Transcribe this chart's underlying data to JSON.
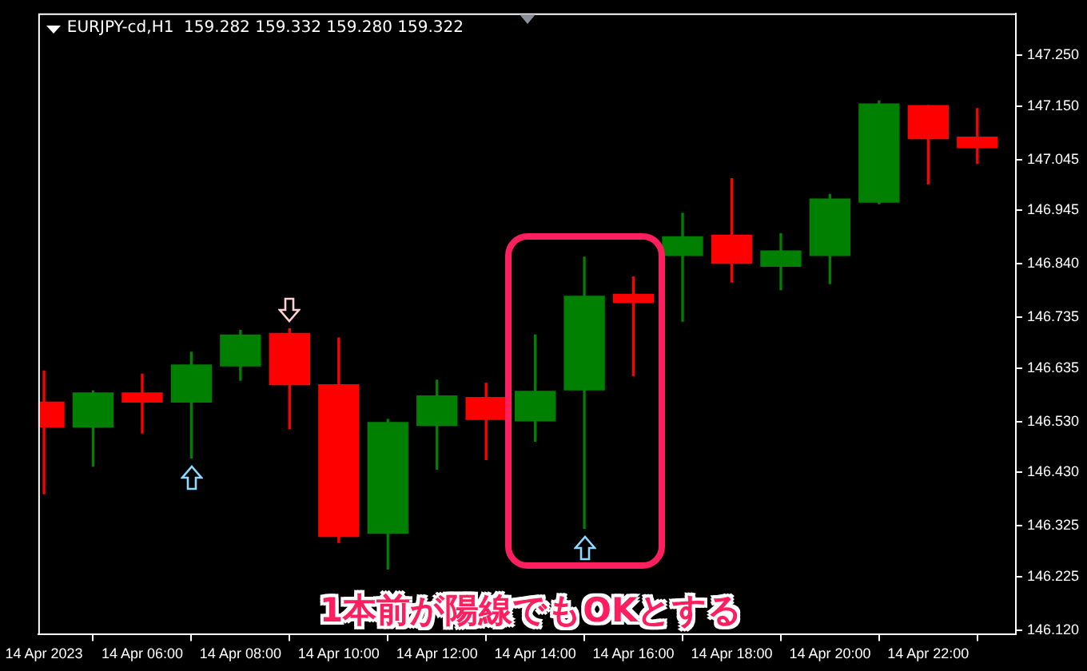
{
  "chart_data": {
    "type": "candlestick",
    "title": "EURJPY-cd,H1  159.282 159.332 159.280 159.322",
    "annotations": [
      "1本前が陽線でもOKとする"
    ],
    "x": [
      "2023-04-14T04:00",
      "2023-04-14T05:00",
      "2023-04-14T06:00",
      "2023-04-14T07:00",
      "2023-04-14T08:00",
      "2023-04-14T09:00",
      "2023-04-14T10:00",
      "2023-04-14T11:00",
      "2023-04-14T12:00",
      "2023-04-14T13:00",
      "2023-04-14T14:00",
      "2023-04-14T15:00",
      "2023-04-14T16:00",
      "2023-04-14T17:00",
      "2023-04-14T18:00",
      "2023-04-14T19:00",
      "2023-04-14T20:00",
      "2023-04-14T21:00",
      "2023-04-14T22:00",
      "2023-04-14T23:00"
    ],
    "ohlc": [
      [
        146.568,
        146.629,
        146.388,
        146.519
      ],
      [
        146.519,
        146.59,
        146.442,
        146.586
      ],
      [
        146.586,
        146.623,
        146.507,
        146.568
      ],
      [
        146.568,
        146.666,
        146.458,
        146.641
      ],
      [
        146.639,
        146.709,
        146.611,
        146.7
      ],
      [
        146.703,
        146.712,
        146.516,
        146.602
      ],
      [
        146.602,
        146.694,
        146.292,
        146.304
      ],
      [
        146.31,
        146.534,
        146.24,
        146.528
      ],
      [
        146.522,
        146.611,
        146.436,
        146.58
      ],
      [
        146.577,
        146.605,
        146.455,
        146.534
      ],
      [
        146.531,
        146.7,
        146.491,
        146.589
      ],
      [
        146.592,
        146.853,
        146.32,
        146.776
      ],
      [
        146.78,
        146.814,
        146.62,
        146.764
      ],
      [
        146.856,
        146.939,
        146.727,
        146.893
      ],
      [
        146.896,
        147.007,
        146.804,
        146.841
      ],
      [
        146.835,
        146.899,
        146.789,
        146.865
      ],
      [
        146.856,
        146.976,
        146.801,
        146.967
      ],
      [
        146.961,
        147.16,
        146.958,
        147.154
      ],
      [
        147.151,
        147.151,
        146.997,
        147.086
      ],
      [
        147.089,
        147.145,
        147.037,
        147.068
      ]
    ],
    "colors": [
      "#ff0000",
      "#008000",
      "#ff0000",
      "#008000",
      "#008000",
      "#ff0000",
      "#ff0000",
      "#008000",
      "#008000",
      "#ff0000",
      "#008000",
      "#008000",
      "#ff0000",
      "#008000",
      "#ff0000",
      "#008000",
      "#008000",
      "#008000",
      "#ff0000",
      "#ff0000"
    ],
    "xlim": [
      "2023-04-14T03:53",
      "2023-04-14T23:47"
    ],
    "xticks": [
      {
        "value": "2023-04-14T04:00",
        "label": "14 Apr 2023"
      },
      {
        "value": "2023-04-14T06:00",
        "label": "14 Apr 06:00"
      },
      {
        "value": "2023-04-14T08:00",
        "label": "14 Apr 08:00"
      },
      {
        "value": "2023-04-14T10:00",
        "label": "14 Apr 10:00"
      },
      {
        "value": "2023-04-14T12:00",
        "label": "14 Apr 12:00"
      },
      {
        "value": "2023-04-14T14:00",
        "label": "14 Apr 14:00"
      },
      {
        "value": "2023-04-14T16:00",
        "label": "14 Apr 16:00"
      },
      {
        "value": "2023-04-14T18:00",
        "label": "14 Apr 18:00"
      },
      {
        "value": "2023-04-14T20:00",
        "label": "14 Apr 20:00"
      },
      {
        "value": "2023-04-14T22:00",
        "label": "14 Apr 22:00"
      }
    ],
    "ylim": [
      146.111,
      147.332
    ],
    "yticks": [
      {
        "value": 146.12,
        "label": "146.120"
      },
      {
        "value": 146.225,
        "label": "146.225"
      },
      {
        "value": 146.325,
        "label": "146.325"
      },
      {
        "value": 146.43,
        "label": "146.430"
      },
      {
        "value": 146.53,
        "label": "146.530"
      },
      {
        "value": 146.635,
        "label": "146.635"
      },
      {
        "value": 146.735,
        "label": "146.735"
      },
      {
        "value": 146.84,
        "label": "146.840"
      },
      {
        "value": 146.945,
        "label": "146.945"
      },
      {
        "value": 147.045,
        "label": "147.045"
      },
      {
        "value": 147.15,
        "label": "147.150"
      },
      {
        "value": 147.25,
        "label": "147.250"
      }
    ]
  }
}
